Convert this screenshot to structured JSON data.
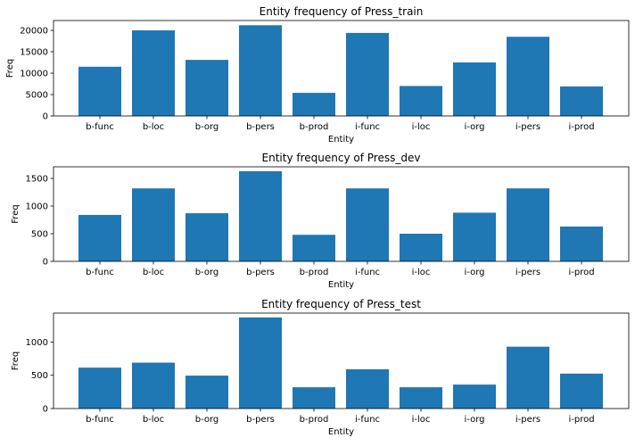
{
  "chart_data": [
    {
      "type": "bar",
      "title": "Entity frequency of Press_train",
      "xlabel": "Entity",
      "ylabel": "Freq",
      "categories": [
        "b-func",
        "b-loc",
        "b-org",
        "b-pers",
        "b-prod",
        "i-func",
        "i-loc",
        "i-org",
        "i-pers",
        "i-prod"
      ],
      "values": [
        11500,
        20000,
        13100,
        21200,
        5400,
        19400,
        7000,
        12500,
        18500,
        6900
      ],
      "ylim": [
        0,
        22300
      ],
      "yticks": [
        0,
        5000,
        10000,
        15000,
        20000
      ],
      "color": "#1f77b4",
      "grid": false
    },
    {
      "type": "bar",
      "title": "Entity frequency of Press_dev",
      "xlabel": "Entity",
      "ylabel": "Freq",
      "categories": [
        "b-func",
        "b-loc",
        "b-org",
        "b-pers",
        "b-prod",
        "i-func",
        "i-loc",
        "i-org",
        "i-pers",
        "i-prod"
      ],
      "values": [
        840,
        1320,
        870,
        1630,
        480,
        1320,
        500,
        880,
        1320,
        630
      ],
      "ylim": [
        0,
        1710
      ],
      "yticks": [
        0,
        500,
        1000,
        1500
      ],
      "color": "#1f77b4",
      "grid": false
    },
    {
      "type": "bar",
      "title": "Entity frequency of Press_test",
      "xlabel": "Entity",
      "ylabel": "Freq",
      "categories": [
        "b-func",
        "b-loc",
        "b-org",
        "b-pers",
        "b-prod",
        "i-func",
        "i-loc",
        "i-org",
        "i-pers",
        "i-prod"
      ],
      "values": [
        615,
        690,
        495,
        1370,
        320,
        590,
        320,
        360,
        930,
        525
      ],
      "ylim": [
        0,
        1435
      ],
      "yticks": [
        0,
        500,
        1000
      ],
      "color": "#1f77b4",
      "grid": false
    }
  ]
}
